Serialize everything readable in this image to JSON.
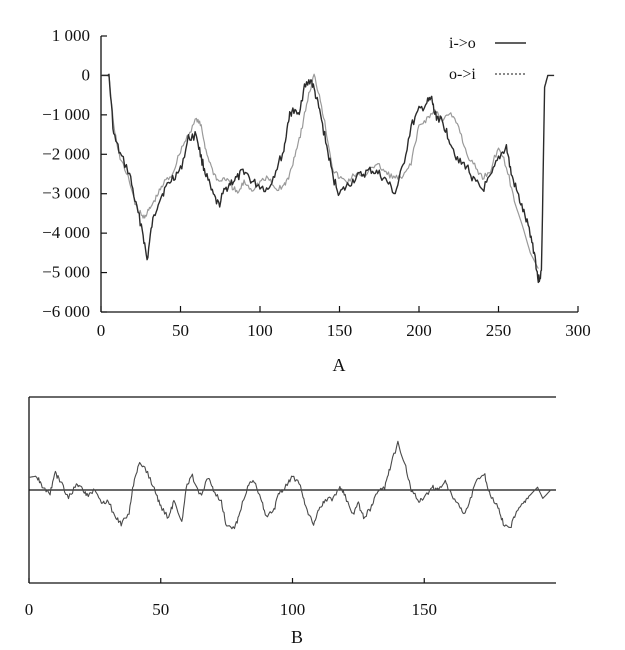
{
  "chart_data": [
    {
      "type": "line",
      "panel_label": "A",
      "xlim": [
        0,
        300
      ],
      "ylim": [
        -6000,
        1000
      ],
      "x_ticks": [
        "0",
        "50",
        "100",
        "150",
        "200",
        "250",
        "300"
      ],
      "y_ticks": [
        "1 000",
        "0",
        "−1 000",
        "−2 000",
        "−3 000",
        "−4 000",
        "−5 000",
        "−6 000"
      ],
      "legend_position": "top-right",
      "grid": false,
      "series": [
        {
          "name": "i->o",
          "color": "#2b2b2b",
          "style": "solid",
          "x": [
            0,
            5,
            8,
            12,
            18,
            22,
            26,
            29,
            32,
            36,
            40,
            45,
            50,
            55,
            60,
            63,
            66,
            70,
            74,
            78,
            82,
            86,
            90,
            95,
            100,
            105,
            110,
            115,
            118,
            120,
            124,
            128,
            132,
            135,
            138,
            142,
            146,
            150,
            155,
            160,
            165,
            170,
            175,
            180,
            185,
            190,
            195,
            200,
            205,
            208,
            210,
            213,
            216,
            220,
            225,
            230,
            235,
            240,
            245,
            250,
            255,
            258,
            262,
            266,
            270,
            273,
            275,
            277,
            279,
            281,
            283,
            285
          ],
          "y": [
            0,
            0,
            -1500,
            -2000,
            -2500,
            -3300,
            -3900,
            -4700,
            -3800,
            -3200,
            -2900,
            -2600,
            -2400,
            -1600,
            -1500,
            -2100,
            -2500,
            -3000,
            -3300,
            -2900,
            -2700,
            -2600,
            -2400,
            -2700,
            -2800,
            -2900,
            -2400,
            -1900,
            -1100,
            -900,
            -1000,
            -300,
            -100,
            -500,
            -1000,
            -1800,
            -2600,
            -3000,
            -2800,
            -2600,
            -2500,
            -2400,
            -2500,
            -2700,
            -3000,
            -2300,
            -1300,
            -900,
            -700,
            -600,
            -1000,
            -1100,
            -1300,
            -1700,
            -2200,
            -2300,
            -2700,
            -2900,
            -2600,
            -2100,
            -1800,
            -2500,
            -3000,
            -3500,
            -4000,
            -4600,
            -5200,
            -5000,
            -300,
            0,
            0,
            0
          ],
          "note": ""
        },
        {
          "name": "o->i",
          "color": "#9a9a9a",
          "style": "solid",
          "x": [
            0,
            5,
            8,
            12,
            18,
            22,
            26,
            29,
            32,
            36,
            40,
            45,
            50,
            55,
            60,
            63,
            66,
            70,
            74,
            78,
            82,
            86,
            90,
            95,
            100,
            105,
            110,
            115,
            118,
            122,
            126,
            130,
            134,
            138,
            142,
            146,
            150,
            155,
            160,
            165,
            170,
            175,
            180,
            185,
            190,
            195,
            200,
            205,
            210,
            215,
            220,
            225,
            230,
            235,
            240,
            245,
            250,
            255,
            260,
            265,
            270,
            275
          ],
          "y": [
            0,
            0,
            -1300,
            -2100,
            -2700,
            -3300,
            -3600,
            -3500,
            -3300,
            -3000,
            -2700,
            -2500,
            -1900,
            -1500,
            -1100,
            -1300,
            -1900,
            -2400,
            -2700,
            -2600,
            -2800,
            -3000,
            -2700,
            -2900,
            -2700,
            -2600,
            -2900,
            -2800,
            -2600,
            -2000,
            -1400,
            -600,
            0,
            -600,
            -1500,
            -2400,
            -2600,
            -2700,
            -2500,
            -2600,
            -2300,
            -2300,
            -2500,
            -2600,
            -2600,
            -2200,
            -1300,
            -1100,
            -900,
            -1100,
            -1000,
            -1300,
            -2000,
            -2300,
            -2600,
            -2400,
            -1800,
            -2300,
            -3200,
            -3800,
            -4500,
            -4900
          ]
        }
      ]
    },
    {
      "type": "line",
      "panel_label": "B",
      "xlim": [
        0,
        200
      ],
      "x_ticks": [
        "0",
        "50",
        "100",
        "150"
      ],
      "grid": false,
      "baseline": true,
      "series": [
        {
          "color": "#4a4a4a",
          "style": "solid",
          "x": [
            0,
            3,
            5,
            8,
            10,
            12,
            15,
            18,
            20,
            22,
            25,
            28,
            30,
            33,
            35,
            38,
            40,
            42,
            45,
            48,
            50,
            53,
            55,
            58,
            60,
            62,
            65,
            68,
            70,
            73,
            75,
            78,
            80,
            83,
            85,
            88,
            90,
            93,
            95,
            98,
            100,
            103,
            105,
            108,
            110,
            112,
            115,
            118,
            120,
            123,
            125,
            127,
            130,
            132,
            135,
            137,
            140,
            143,
            145,
            148,
            150,
            153,
            155,
            158,
            160,
            163,
            165,
            168,
            170,
            173,
            175,
            178,
            180,
            183,
            185,
            188,
            190,
            193,
            195,
            198
          ],
          "y": [
            0.45,
            0.5,
            0.1,
            -0.1,
            0.6,
            0.3,
            -0.3,
            0.2,
            0.1,
            -0.2,
            0.0,
            -0.5,
            -0.4,
            -1.0,
            -1.2,
            -0.8,
            0.4,
            1.0,
            0.6,
            -0.1,
            -0.6,
            -1.0,
            -0.4,
            -1.1,
            0.2,
            0.5,
            -0.2,
            0.4,
            0.0,
            -0.4,
            -1.3,
            -1.4,
            -0.8,
            0.1,
            0.4,
            -0.3,
            -1.0,
            -0.7,
            -0.1,
            0.2,
            0.5,
            0.2,
            -0.6,
            -1.2,
            -0.7,
            -0.4,
            -0.3,
            0.1,
            -0.2,
            -0.9,
            -0.5,
            -1.0,
            -0.6,
            -0.1,
            0.1,
            0.8,
            1.7,
            0.8,
            0.0,
            -0.4,
            -0.3,
            0.1,
            0.0,
            0.3,
            -0.1,
            -0.5,
            -0.9,
            -0.2,
            0.4,
            0.5,
            -0.2,
            -0.6,
            -1.2,
            -1.3,
            -0.7,
            -0.4,
            -0.2,
            0.1,
            -0.3,
            0.0
          ]
        }
      ]
    }
  ]
}
